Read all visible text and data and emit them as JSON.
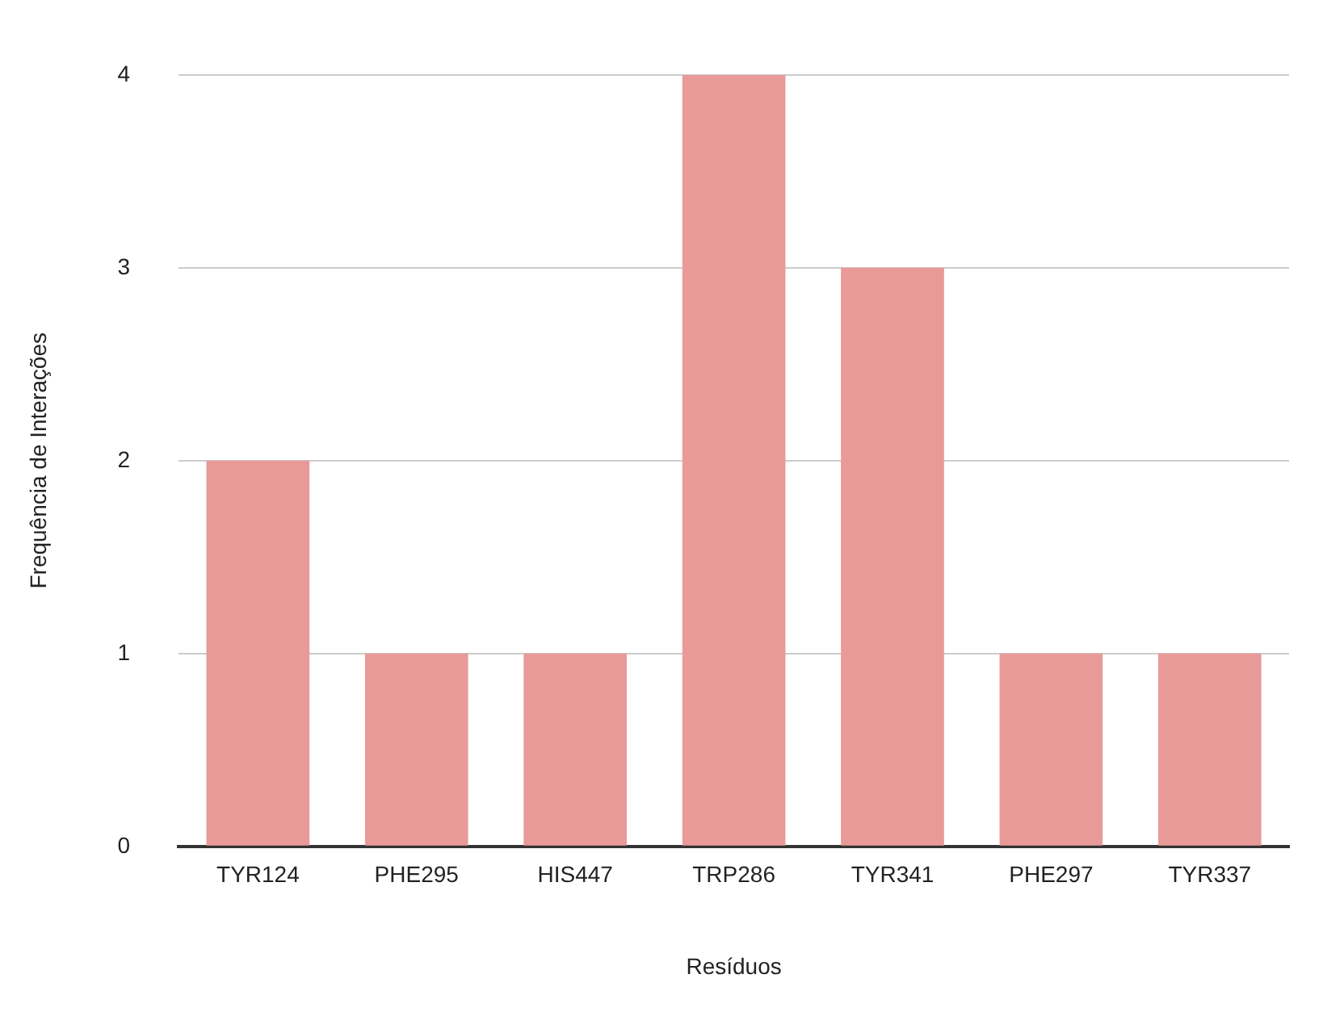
{
  "chart_data": {
    "type": "bar",
    "xlabel": "Resíduos",
    "ylabel": "Frequência de Interações",
    "categories": [
      "TYR124",
      "PHE295",
      "HIS447",
      "TRP286",
      "TYR341",
      "PHE297",
      "TYR337"
    ],
    "values": [
      2,
      1,
      1,
      4,
      3,
      1,
      1
    ],
    "color": "#e89a98",
    "ylim": [
      0,
      4
    ],
    "yticks": [
      0,
      1,
      2,
      3,
      4
    ],
    "grid": "y",
    "legend": false
  }
}
